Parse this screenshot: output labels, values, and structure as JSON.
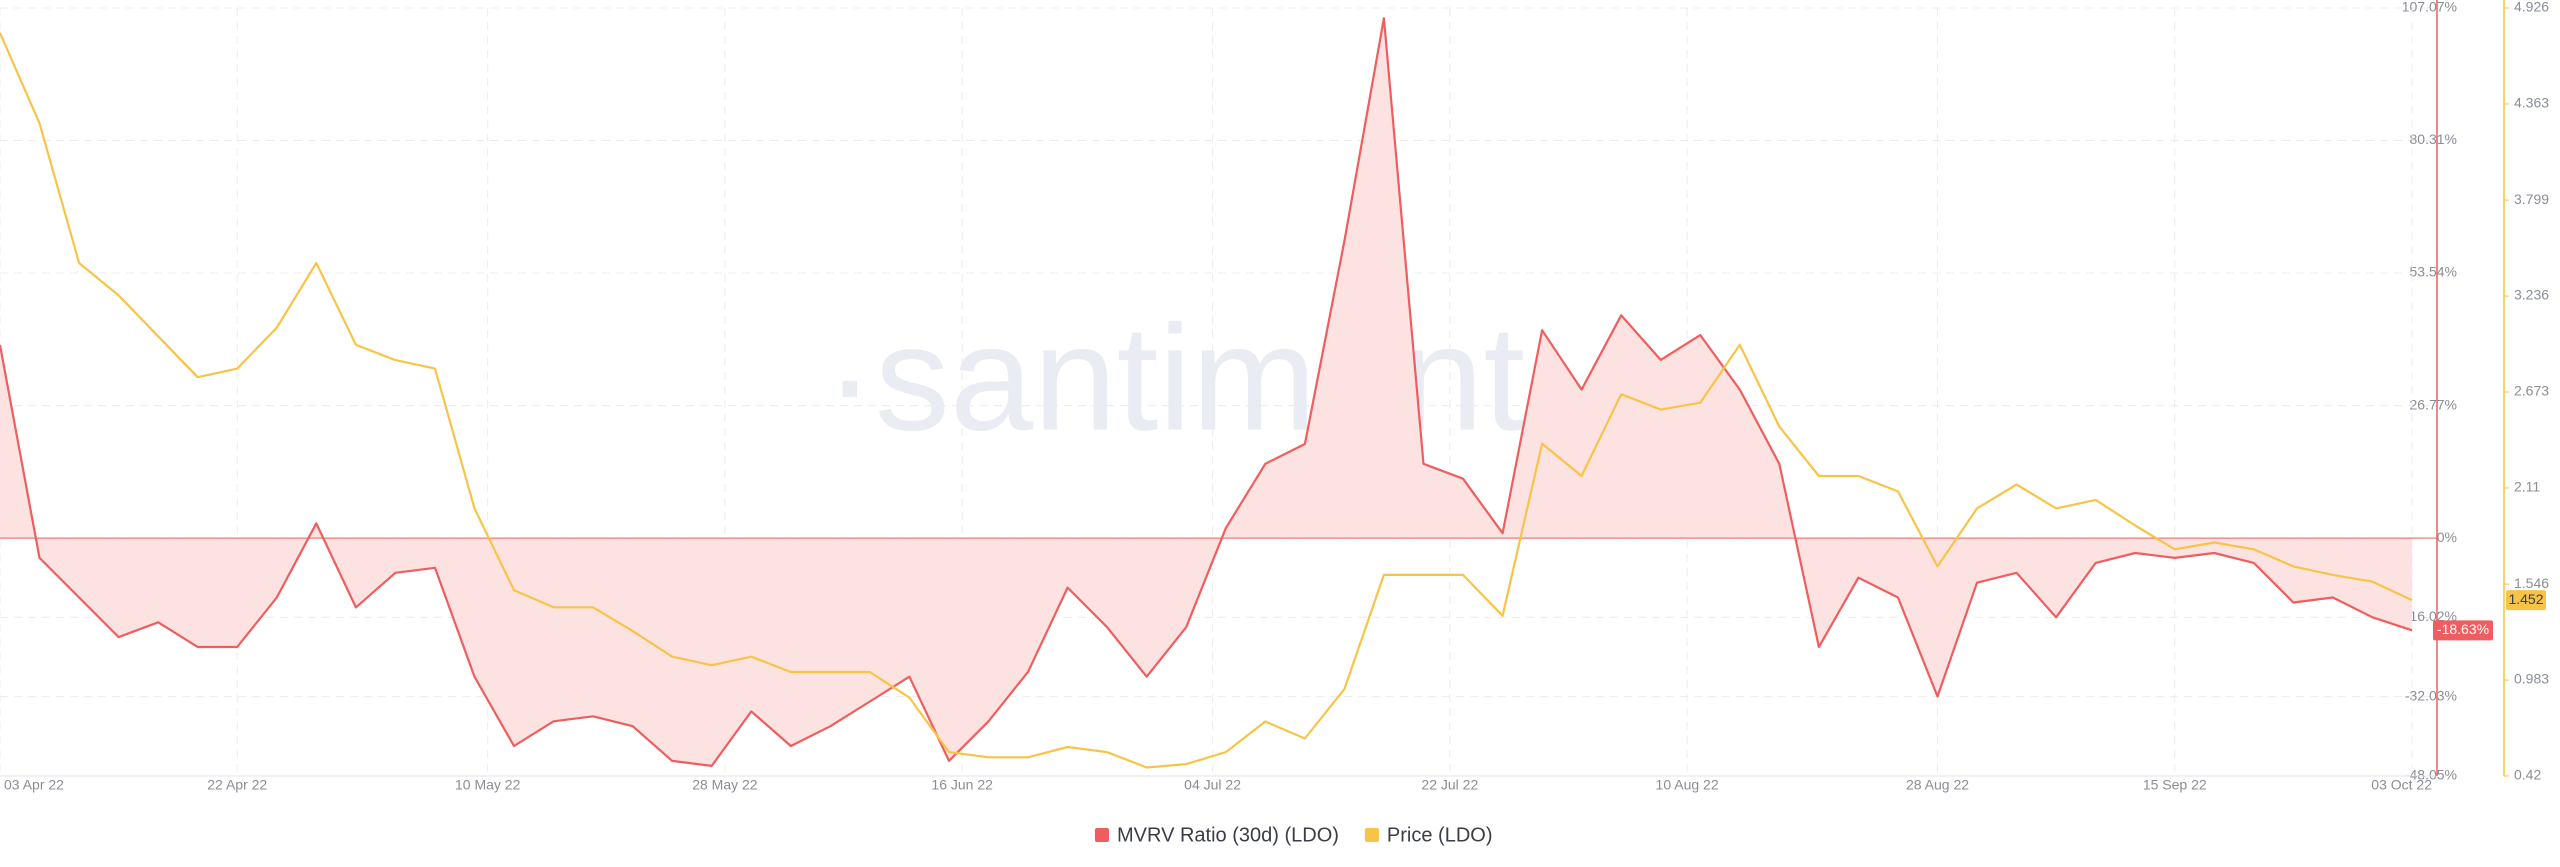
{
  "chart_data": {
    "type": "line",
    "watermark": "·santiment·",
    "x": [
      "2022-04-03",
      "2022-04-06",
      "2022-04-09",
      "2022-04-12",
      "2022-04-15",
      "2022-04-18",
      "2022-04-21",
      "2022-04-24",
      "2022-04-27",
      "2022-04-30",
      "2022-05-03",
      "2022-05-06",
      "2022-05-09",
      "2022-05-12",
      "2022-05-15",
      "2022-05-18",
      "2022-05-21",
      "2022-05-24",
      "2022-05-27",
      "2022-05-30",
      "2022-06-02",
      "2022-06-05",
      "2022-06-08",
      "2022-06-11",
      "2022-06-14",
      "2022-06-17",
      "2022-06-20",
      "2022-06-23",
      "2022-06-26",
      "2022-06-29",
      "2022-07-02",
      "2022-07-05",
      "2022-07-08",
      "2022-07-11",
      "2022-07-14",
      "2022-07-17",
      "2022-07-20",
      "2022-07-23",
      "2022-07-26",
      "2022-07-29",
      "2022-08-01",
      "2022-08-04",
      "2022-08-07",
      "2022-08-10",
      "2022-08-13",
      "2022-08-16",
      "2022-08-19",
      "2022-08-22",
      "2022-08-25",
      "2022-08-28",
      "2022-08-31",
      "2022-09-03",
      "2022-09-06",
      "2022-09-09",
      "2022-09-12",
      "2022-09-15",
      "2022-09-18",
      "2022-09-21",
      "2022-09-24",
      "2022-09-27",
      "2022-09-30",
      "2022-10-03"
    ],
    "xlim": [
      "2022-04-03",
      "2022-10-03"
    ],
    "xticks": [
      {
        "value": "2022-04-03",
        "label": "03 Apr 22"
      },
      {
        "value": "2022-04-21",
        "label": "22 Apr 22"
      },
      {
        "value": "2022-05-10",
        "label": "10 May 22"
      },
      {
        "value": "2022-05-28",
        "label": "28 May 22"
      },
      {
        "value": "2022-06-15",
        "label": "16 Jun 22"
      },
      {
        "value": "2022-07-04",
        "label": "04 Jul 22"
      },
      {
        "value": "2022-07-22",
        "label": "22 Jul 22"
      },
      {
        "value": "2022-08-09",
        "label": "10 Aug 22"
      },
      {
        "value": "2022-08-28",
        "label": "28 Aug 22"
      },
      {
        "value": "2022-09-15",
        "label": "15 Sep 22"
      },
      {
        "value": "2022-10-03",
        "label": "03 Oct 22"
      }
    ],
    "ylim": [
      -48.05,
      107.07
    ],
    "yticks": [
      {
        "value": 107.07,
        "label": "107.07%"
      },
      {
        "value": 80.31,
        "label": "80.31%"
      },
      {
        "value": 53.54,
        "label": "53.54%"
      },
      {
        "value": 26.77,
        "label": "26.77%"
      },
      {
        "value": 0,
        "label": "0%"
      },
      {
        "value": -16.02,
        "label": "-16.02%"
      },
      {
        "value": -32.03,
        "label": "-32.03%"
      },
      {
        "value": -48.05,
        "label": "-48.05%"
      }
    ],
    "y2lim": [
      0.42,
      4.926
    ],
    "y2ticks": [
      4.926,
      4.363,
      3.799,
      3.236,
      2.673,
      2.11,
      1.546,
      0.983,
      0.42
    ],
    "grid": true,
    "series": [
      {
        "name": "MVRV Ratio (30d) (LDO)",
        "color": "#f05d5e",
        "fill": "#fde2e2",
        "axis": "y",
        "current_label": "-18.63%",
        "values": [
          39,
          -4,
          -12,
          -20,
          -17,
          -22,
          -22,
          -12,
          3,
          -14,
          -7,
          -6,
          -28,
          -42,
          -37,
          -36,
          -38,
          -45,
          -46,
          -35,
          -42,
          -38,
          -33,
          -28,
          -45,
          -37,
          -27,
          -10,
          -18,
          -28,
          -18,
          2,
          15,
          19,
          60,
          105,
          15,
          12,
          1,
          42,
          30,
          45,
          36,
          41,
          30,
          15,
          -22,
          -8,
          -12,
          -32,
          -9,
          -7,
          -16,
          -5,
          -3,
          -4,
          -3,
          -5,
          -13,
          -12,
          -16,
          -18.63
        ]
      },
      {
        "name": "Price (LDO)",
        "color": "#f7c447",
        "axis": "y2",
        "current_label": "1.452",
        "values": [
          4.78,
          4.25,
          3.43,
          3.24,
          3.0,
          2.76,
          2.81,
          3.05,
          3.43,
          2.95,
          2.86,
          2.81,
          1.99,
          1.51,
          1.41,
          1.41,
          1.27,
          1.12,
          1.07,
          1.12,
          1.03,
          1.03,
          1.03,
          0.88,
          0.56,
          0.53,
          0.53,
          0.59,
          0.56,
          0.47,
          0.49,
          0.56,
          0.74,
          0.64,
          0.93,
          1.6,
          1.6,
          1.6,
          1.36,
          2.37,
          2.18,
          2.66,
          2.57,
          2.61,
          2.95,
          2.47,
          2.18,
          2.18,
          2.09,
          1.65,
          1.99,
          2.13,
          1.99,
          2.04,
          1.89,
          1.75,
          1.79,
          1.75,
          1.65,
          1.6,
          1.56,
          1.452
        ]
      }
    ]
  }
}
